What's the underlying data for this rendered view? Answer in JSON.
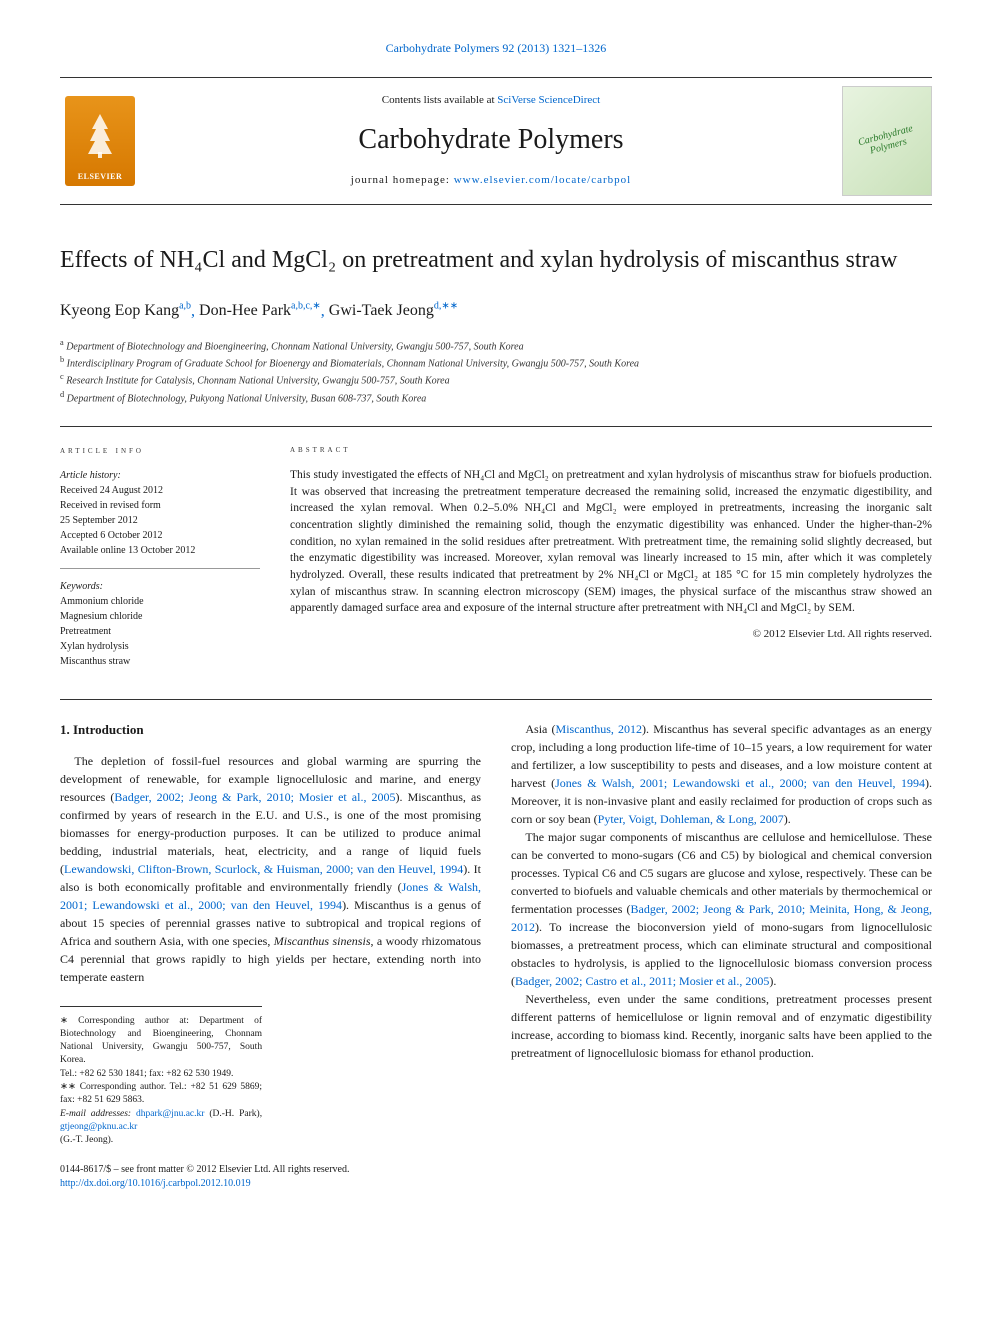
{
  "header": {
    "citation": "Carbohydrate Polymers 92 (2013) 1321–1326",
    "contents_prefix": "Contents lists available at ",
    "contents_link": "SciVerse ScienceDirect",
    "journal_name": "Carbohydrate Polymers",
    "homepage_prefix": "journal homepage: ",
    "homepage_url": "www.elsevier.com/locate/carbpol",
    "publisher_logo": "ELSEVIER",
    "cover_text": "Carbohydrate Polymers"
  },
  "article": {
    "title": "Effects of NH₄Cl and MgCl₂ on pretreatment and xylan hydrolysis of miscanthus straw",
    "authors": [
      {
        "name": "Kyeong Eop Kang",
        "marks": "a,b"
      },
      {
        "name": "Don-Hee Park",
        "marks": "a,b,c,∗"
      },
      {
        "name": "Gwi-Taek Jeong",
        "marks": "d,∗∗"
      }
    ],
    "affiliations": [
      {
        "mark": "a",
        "text": "Department of Biotechnology and Bioengineering, Chonnam National University, Gwangju 500-757, South Korea"
      },
      {
        "mark": "b",
        "text": "Interdisciplinary Program of Graduate School for Bioenergy and Biomaterials, Chonnam National University, Gwangju 500-757, South Korea"
      },
      {
        "mark": "c",
        "text": "Research Institute for Catalysis, Chonnam National University, Gwangju 500-757, South Korea"
      },
      {
        "mark": "d",
        "text": "Department of Biotechnology, Pukyong National University, Busan 608-737, South Korea"
      }
    ]
  },
  "info": {
    "heading": "ARTICLE INFO",
    "history_label": "Article history:",
    "history": [
      "Received 24 August 2012",
      "Received in revised form",
      "25 September 2012",
      "Accepted 6 October 2012",
      "Available online 13 October 2012"
    ],
    "keywords_label": "Keywords:",
    "keywords": [
      "Ammonium chloride",
      "Magnesium chloride",
      "Pretreatment",
      "Xylan hydrolysis",
      "Miscanthus straw"
    ]
  },
  "abstract": {
    "heading": "ABSTRACT",
    "text": "This study investigated the effects of NH₄Cl and MgCl₂ on pretreatment and xylan hydrolysis of miscanthus straw for biofuels production. It was observed that increasing the pretreatment temperature decreased the remaining solid, increased the enzymatic digestibility, and increased the xylan removal. When 0.2–5.0% NH₄Cl and MgCl₂ were employed in pretreatments, increasing the inorganic salt concentration slightly diminished the remaining solid, though the enzymatic digestibility was enhanced. Under the higher-than-2% condition, no xylan remained in the solid residues after pretreatment. With pretreatment time, the remaining solid slightly decreased, but the enzymatic digestibility was increased. Moreover, xylan removal was linearly increased to 15 min, after which it was completely hydrolyzed. Overall, these results indicated that pretreatment by 2% NH₄Cl or MgCl₂ at 185 °C for 15 min completely hydrolyzes the xylan of miscanthus straw. In scanning electron microscopy (SEM) images, the physical surface of the miscanthus straw showed an apparently damaged surface area and exposure of the internal structure after pretreatment with NH₄Cl and MgCl₂ by SEM.",
    "copyright": "© 2012 Elsevier Ltd. All rights reserved."
  },
  "body": {
    "section_heading": "1. Introduction",
    "col1_html": "The depletion of fossil-fuel resources and global warming are spurring the development of renewable, for example lignocellulosic and marine, and energy resources (<a href='#'>Badger, 2002; Jeong & Park, 2010; Mosier et al., 2005</a>). Miscanthus, as confirmed by years of research in the E.U. and U.S., is one of the most promising biomasses for energy-production purposes. It can be utilized to produce animal bedding, industrial materials, heat, electricity, and a range of liquid fuels (<a href='#'>Lewandowski, Clifton-Brown, Scurlock, & Huisman, 2000; van den Heuvel, 1994</a>). It also is both economically profitable and environmentally friendly (<a href='#'>Jones & Walsh, 2001; Lewandowski et al., 2000; van den Heuvel, 1994</a>). Miscanthus is a genus of about 15 species of perennial grasses native to subtropical and tropical regions of Africa and southern Asia, with one species, <em>Miscanthus sinensis</em>, a woody rhizomatous C4 perennial that grows rapidly to high yields per hectare, extending north into temperate eastern",
    "col2_html": "Asia (<a href='#'>Miscanthus, 2012</a>). Miscanthus has several specific advantages as an energy crop, including a long production life-time of 10–15 years, a low requirement for water and fertilizer, a low susceptibility to pests and diseases, and a low moisture content at harvest (<a href='#'>Jones & Walsh, 2001; Lewandowski et al., 2000; van den Heuvel, 1994</a>). Moreover, it is non-invasive plant and easily reclaimed for production of crops such as corn or soy bean (<a href='#'>Pyter, Voigt, Dohleman, & Long, 2007</a>).</p><p>The major sugar components of miscanthus are cellulose and hemicellulose. These can be converted to mono-sugars (C6 and C5) by biological and chemical conversion processes. Typical C6 and C5 sugars are glucose and xylose, respectively. These can be converted to biofuels and valuable chemicals and other materials by thermochemical or fermentation processes (<a href='#'>Badger, 2002; Jeong & Park, 2010; Meinita, Hong, & Jeong, 2012</a>). To increase the bioconversion yield of mono-sugars from lignocellulosic biomasses, a pretreatment process, which can eliminate structural and compositional obstacles to hydrolysis, is applied to the lignocellulosic biomass conversion process (<a href='#'>Badger, 2002; Castro et al., 2011; Mosier et al., 2005</a>).</p><p>Nevertheless, even under the same conditions, pretreatment processes present different patterns of hemicellulose or lignin removal and of enzymatic digestibility increase, according to biomass kind. Recently, inorganic salts have been applied to the pretreatment of lignocellulosic biomass for ethanol production."
  },
  "footnotes": {
    "corr1": "∗ Corresponding author at: Department of Biotechnology and Bioengineering, Chonnam National University, Gwangju 500-757, South Korea.",
    "tel1": "Tel.: +82 62 530 1841; fax: +82 62 530 1949.",
    "corr2": "∗∗ Corresponding author. Tel.: +82 51 629 5869; fax: +82 51 629 5863.",
    "email_label": "E-mail addresses: ",
    "email1": "dhpark@jnu.ac.kr",
    "email1_name": " (D.-H. Park), ",
    "email2": "gtjeong@pknu.ac.kr",
    "email2_name": "(G.-T. Jeong)."
  },
  "footer": {
    "issn": "0144-8617/$ – see front matter © 2012 Elsevier Ltd. All rights reserved.",
    "doi": "http://dx.doi.org/10.1016/j.carbpol.2012.10.019"
  },
  "colors": {
    "link": "#0066cc",
    "text": "#1a1a1a",
    "border": "#333333",
    "elsevier_orange": "#e8941a"
  }
}
